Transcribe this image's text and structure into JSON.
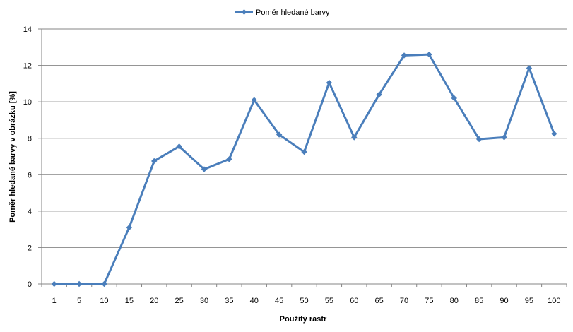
{
  "chart_data": {
    "type": "line",
    "categories": [
      "1",
      "5",
      "10",
      "15",
      "20",
      "25",
      "30",
      "35",
      "40",
      "45",
      "50",
      "55",
      "60",
      "65",
      "70",
      "75",
      "80",
      "85",
      "90",
      "95",
      "100"
    ],
    "series": [
      {
        "name": "Poměr hledané barvy",
        "values": [
          0,
          0,
          0,
          3.1,
          6.75,
          7.55,
          6.3,
          6.85,
          10.1,
          8.2,
          7.25,
          11.05,
          8.05,
          10.4,
          12.55,
          12.6,
          10.2,
          7.95,
          8.05,
          11.85,
          8.25
        ]
      }
    ],
    "xlabel": "Použitý rastr",
    "ylabel": "Poměr hledané barvy v obrázku [%]",
    "ylim": [
      0,
      14
    ],
    "yticks": [
      0,
      2,
      4,
      6,
      8,
      10,
      12,
      14
    ],
    "grid": true,
    "legend_position": "top-center",
    "colors": {
      "series": "#4a7ebb",
      "grid": "#868686",
      "axis": "#868686"
    }
  }
}
